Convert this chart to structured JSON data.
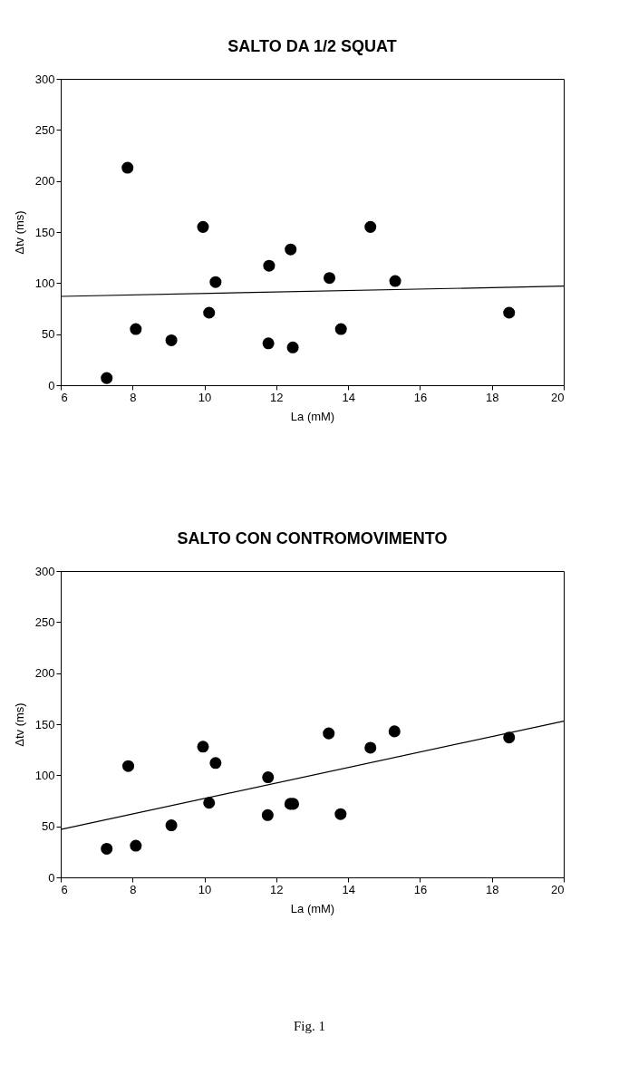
{
  "chart_data": [
    {
      "type": "scatter",
      "title": "SALTO DA 1/2 SQUAT",
      "xlabel": "La (mM)",
      "ylabel": "Δtv (ms)",
      "xlim": [
        6,
        20
      ],
      "xticks": [
        6,
        8,
        10,
        12,
        14,
        16,
        18,
        20
      ],
      "ylim": [
        0,
        300
      ],
      "yticks": [
        0,
        50,
        100,
        150,
        200,
        250,
        300
      ],
      "grid": false,
      "series": [
        {
          "type": "scatter",
          "marker": "circle",
          "color": "#000000",
          "x": [
            7.28,
            7.86,
            8.09,
            9.08,
            9.96,
            10.13,
            10.31,
            11.78,
            11.8,
            12.4,
            12.46,
            13.48,
            13.8,
            14.62,
            15.31,
            18.48
          ],
          "values": [
            7,
            213,
            55,
            44,
            155,
            71,
            101,
            41,
            117,
            133,
            37,
            105,
            55,
            155,
            102,
            71
          ]
        },
        {
          "type": "line",
          "color": "#000000",
          "x": [
            6,
            20
          ],
          "values": [
            87,
            97
          ]
        }
      ]
    },
    {
      "type": "scatter",
      "title": "SALTO CON CONTROMOVIMENTO",
      "xlabel": "La (mM)",
      "ylabel": "Δtv (ms)",
      "xlim": [
        6,
        20
      ],
      "xticks": [
        6,
        8,
        10,
        12,
        14,
        16,
        18,
        20
      ],
      "ylim": [
        0,
        300
      ],
      "yticks": [
        0,
        50,
        100,
        150,
        200,
        250,
        300
      ],
      "grid": false,
      "annotations": [
        "Fig. 1"
      ],
      "series": [
        {
          "type": "scatter",
          "marker": "circle",
          "color": "#000000",
          "x": [
            7.28,
            7.88,
            8.09,
            9.08,
            9.96,
            10.13,
            10.31,
            11.76,
            11.77,
            12.39,
            12.47,
            13.46,
            13.79,
            14.62,
            15.29,
            18.48
          ],
          "values": [
            28,
            109,
            31,
            51,
            128,
            73,
            112,
            61,
            98,
            72,
            72,
            141,
            62,
            127,
            143,
            137
          ]
        },
        {
          "type": "line",
          "color": "#000000",
          "x": [
            6,
            20
          ],
          "values": [
            47,
            153
          ]
        }
      ]
    }
  ]
}
